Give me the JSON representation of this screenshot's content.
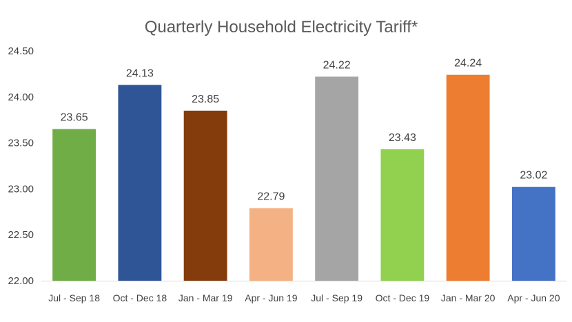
{
  "chart_data": {
    "type": "bar",
    "title": "Quarterly Household Electricity Tariff*",
    "xlabel": "",
    "ylabel": "",
    "ylim": [
      22.0,
      24.5
    ],
    "yticks": [
      "22.00",
      "22.50",
      "23.00",
      "23.50",
      "24.00",
      "24.50"
    ],
    "grid": false,
    "legend": "none",
    "categories": [
      "Jul - Sep 18",
      "Oct - Dec 18",
      "Jan - Mar 19",
      "Apr - Jun 19",
      "Jul - Sep 19",
      "Oct - Dec 19",
      "Jan - Mar 20",
      "Apr - Jun 20"
    ],
    "values": [
      23.65,
      24.13,
      23.85,
      22.79,
      24.22,
      23.43,
      24.24,
      23.02
    ],
    "data_labels": [
      "23.65",
      "24.13",
      "23.85",
      "22.79",
      "24.22",
      "23.43",
      "24.24",
      "23.02"
    ],
    "colors": [
      "#70AD47",
      "#2F5597",
      "#843C0C",
      "#F4B183",
      "#A5A5A5",
      "#92D050",
      "#ED7D31",
      "#4472C4"
    ]
  }
}
